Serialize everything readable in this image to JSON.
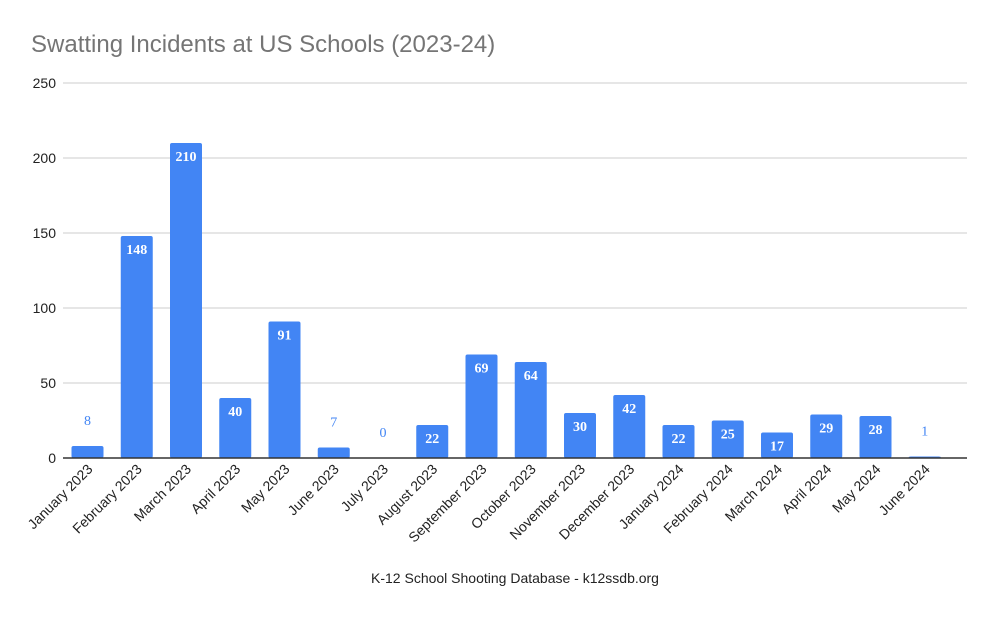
{
  "chart_data": {
    "type": "bar",
    "title": "Swatting Incidents at US Schools (2023-24)",
    "xlabel": "K-12 School Shooting Database - k12ssdb.org",
    "ylabel": "",
    "ylim": [
      0,
      250
    ],
    "yticks": [
      0,
      50,
      100,
      150,
      200,
      250
    ],
    "grid": true,
    "legend": "none",
    "bar_color": "#4285f4",
    "label_inside_color": "#ffffff",
    "label_outside_color": "#4285f4",
    "categories": [
      "January 2023",
      "February 2023",
      "March 2023",
      "April 2023",
      "May 2023",
      "June 2023",
      "July 2023",
      "August 2023",
      "September 2023",
      "October 2023",
      "November 2023",
      "December 2023",
      "January 2024",
      "February 2024",
      "March 2024",
      "April 2024",
      "May 2024",
      "June 2024"
    ],
    "values": [
      8,
      148,
      210,
      40,
      91,
      7,
      0,
      22,
      69,
      64,
      30,
      42,
      22,
      25,
      17,
      29,
      28,
      1
    ]
  }
}
